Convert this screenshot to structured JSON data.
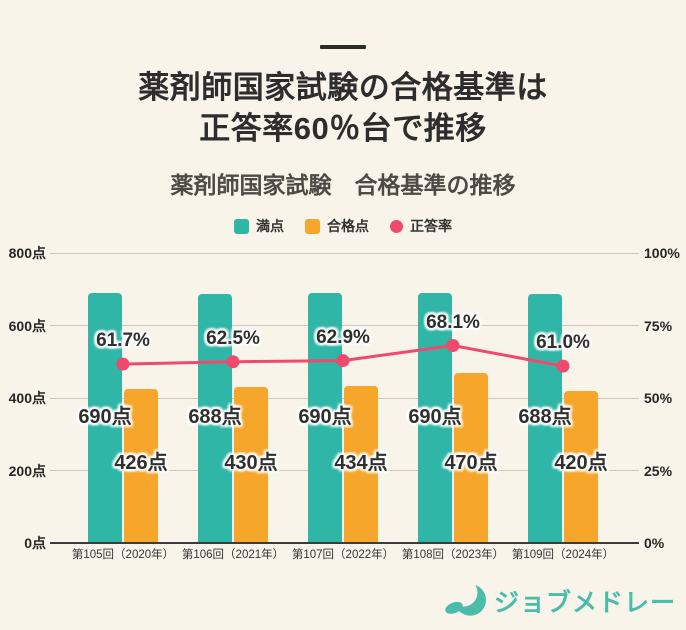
{
  "header": {
    "title_line1": "薬剤師国家試験の合格基準は",
    "title_line2": "正答率60％台で推移",
    "subtitle": "薬剤師国家試験　合格基準の推移"
  },
  "colors": {
    "background": "#F8F4EA",
    "full_score_bar": "#2FB6A7",
    "passing_score_bar": "#F6A62B",
    "rate_line": "#EF4A6E",
    "grid": "#CCC8BC",
    "baseline": "#3B3B3B",
    "logo": "#4ABCAB"
  },
  "legend": [
    {
      "label": "満点",
      "color": "#2FB6A7",
      "shape": "square",
      "key": "full-score"
    },
    {
      "label": "合格点",
      "color": "#F6A62B",
      "shape": "square",
      "key": "passing-score"
    },
    {
      "label": "正答率",
      "color": "#EF4A6E",
      "shape": "circle",
      "key": "rate"
    }
  ],
  "chart_data": {
    "type": "bar",
    "title": "薬剤師国家試験　合格基準の推移",
    "categories": [
      "第105回（2020年）",
      "第106回（2021年）",
      "第107回（2022年）",
      "第108回（2023年）",
      "第109回（2024年）"
    ],
    "series": [
      {
        "name": "満点",
        "chart_type": "bar",
        "axis": "left",
        "color": "#2FB6A7",
        "values": [
          690,
          688,
          690,
          690,
          688
        ],
        "value_labels": [
          "690点",
          "688点",
          "690点",
          "690点",
          "688点"
        ],
        "key": "full-score"
      },
      {
        "name": "合格点",
        "chart_type": "bar",
        "axis": "left",
        "color": "#F6A62B",
        "values": [
          426,
          430,
          434,
          470,
          420
        ],
        "value_labels": [
          "426点",
          "430点",
          "434点",
          "470点",
          "420点"
        ],
        "key": "passing-score"
      },
      {
        "name": "正答率",
        "chart_type": "line",
        "axis": "right",
        "color": "#EF4A6E",
        "values": [
          61.7,
          62.5,
          62.9,
          68.1,
          61.0
        ],
        "value_labels": [
          "61.7%",
          "62.5%",
          "62.9%",
          "68.1%",
          "61.0%"
        ],
        "key": "rate"
      }
    ],
    "left_axis": {
      "min": 0,
      "max": 800,
      "ticks": [
        {
          "value": 0,
          "label": "0点"
        },
        {
          "value": 200,
          "label": "200点"
        },
        {
          "value": 400,
          "label": "400点"
        },
        {
          "value": 600,
          "label": "600点"
        },
        {
          "value": 800,
          "label": "800点"
        }
      ]
    },
    "right_axis": {
      "min": 0,
      "max": 100,
      "ticks": [
        {
          "value": 0,
          "label": "0%"
        },
        {
          "value": 25,
          "label": "25%"
        },
        {
          "value": 50,
          "label": "50%"
        },
        {
          "value": 75,
          "label": "75%"
        },
        {
          "value": 100,
          "label": "100%"
        }
      ]
    },
    "grid": true,
    "legend_position": "top"
  },
  "footer": {
    "logo_text": "ジョブメドレー"
  }
}
